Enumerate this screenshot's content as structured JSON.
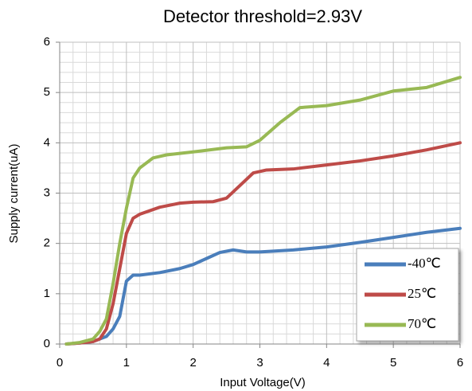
{
  "chart_data": {
    "type": "line",
    "title": "Detector threshold=2.93V",
    "x_label": "Input Voltage(V)",
    "y_label": "Supply current(uA)",
    "xlim": [
      0,
      6
    ],
    "xticks": [
      0,
      1,
      2,
      3,
      4,
      5,
      6
    ],
    "ylim": [
      0,
      6
    ],
    "yticks": [
      0,
      1,
      2,
      3,
      4,
      5,
      6
    ],
    "grid": true,
    "minor_divisions": 5,
    "legend": "lower right",
    "series": [
      {
        "name": "-40℃",
        "color": "#4a7ebb",
        "x": [
          0.1,
          0.3,
          0.5,
          0.7,
          0.8,
          0.9,
          0.95,
          1.0,
          1.1,
          1.2,
          1.5,
          1.8,
          2.0,
          2.2,
          2.4,
          2.6,
          2.8,
          3.0,
          3.5,
          4.0,
          4.5,
          5.0,
          5.5,
          6.0
        ],
        "values": [
          0,
          0.02,
          0.05,
          0.15,
          0.3,
          0.55,
          0.9,
          1.25,
          1.37,
          1.37,
          1.42,
          1.5,
          1.58,
          1.7,
          1.82,
          1.87,
          1.83,
          1.83,
          1.87,
          1.93,
          2.02,
          2.12,
          2.22,
          2.3
        ]
      },
      {
        "name": "25℃",
        "color": "#be4b48",
        "x": [
          0.1,
          0.3,
          0.5,
          0.6,
          0.7,
          0.8,
          0.9,
          1.0,
          1.1,
          1.2,
          1.5,
          1.8,
          2.0,
          2.3,
          2.5,
          2.7,
          2.9,
          3.1,
          3.5,
          4.0,
          4.5,
          5.0,
          5.5,
          6.0
        ],
        "values": [
          0,
          0.02,
          0.05,
          0.1,
          0.3,
          0.8,
          1.5,
          2.2,
          2.5,
          2.58,
          2.72,
          2.8,
          2.82,
          2.83,
          2.9,
          3.15,
          3.4,
          3.46,
          3.48,
          3.56,
          3.64,
          3.74,
          3.86,
          4.0
        ]
      },
      {
        "name": "70℃",
        "color": "#98b954",
        "x": [
          0.1,
          0.3,
          0.5,
          0.6,
          0.7,
          0.8,
          0.9,
          1.0,
          1.1,
          1.2,
          1.4,
          1.6,
          2.0,
          2.5,
          2.8,
          3.0,
          3.3,
          3.6,
          4.0,
          4.5,
          5.0,
          5.5,
          6.0
        ],
        "values": [
          0,
          0.03,
          0.1,
          0.25,
          0.5,
          1.2,
          2.0,
          2.7,
          3.3,
          3.5,
          3.7,
          3.76,
          3.82,
          3.9,
          3.92,
          4.05,
          4.4,
          4.7,
          4.74,
          4.85,
          5.03,
          5.1,
          5.3
        ]
      }
    ]
  }
}
